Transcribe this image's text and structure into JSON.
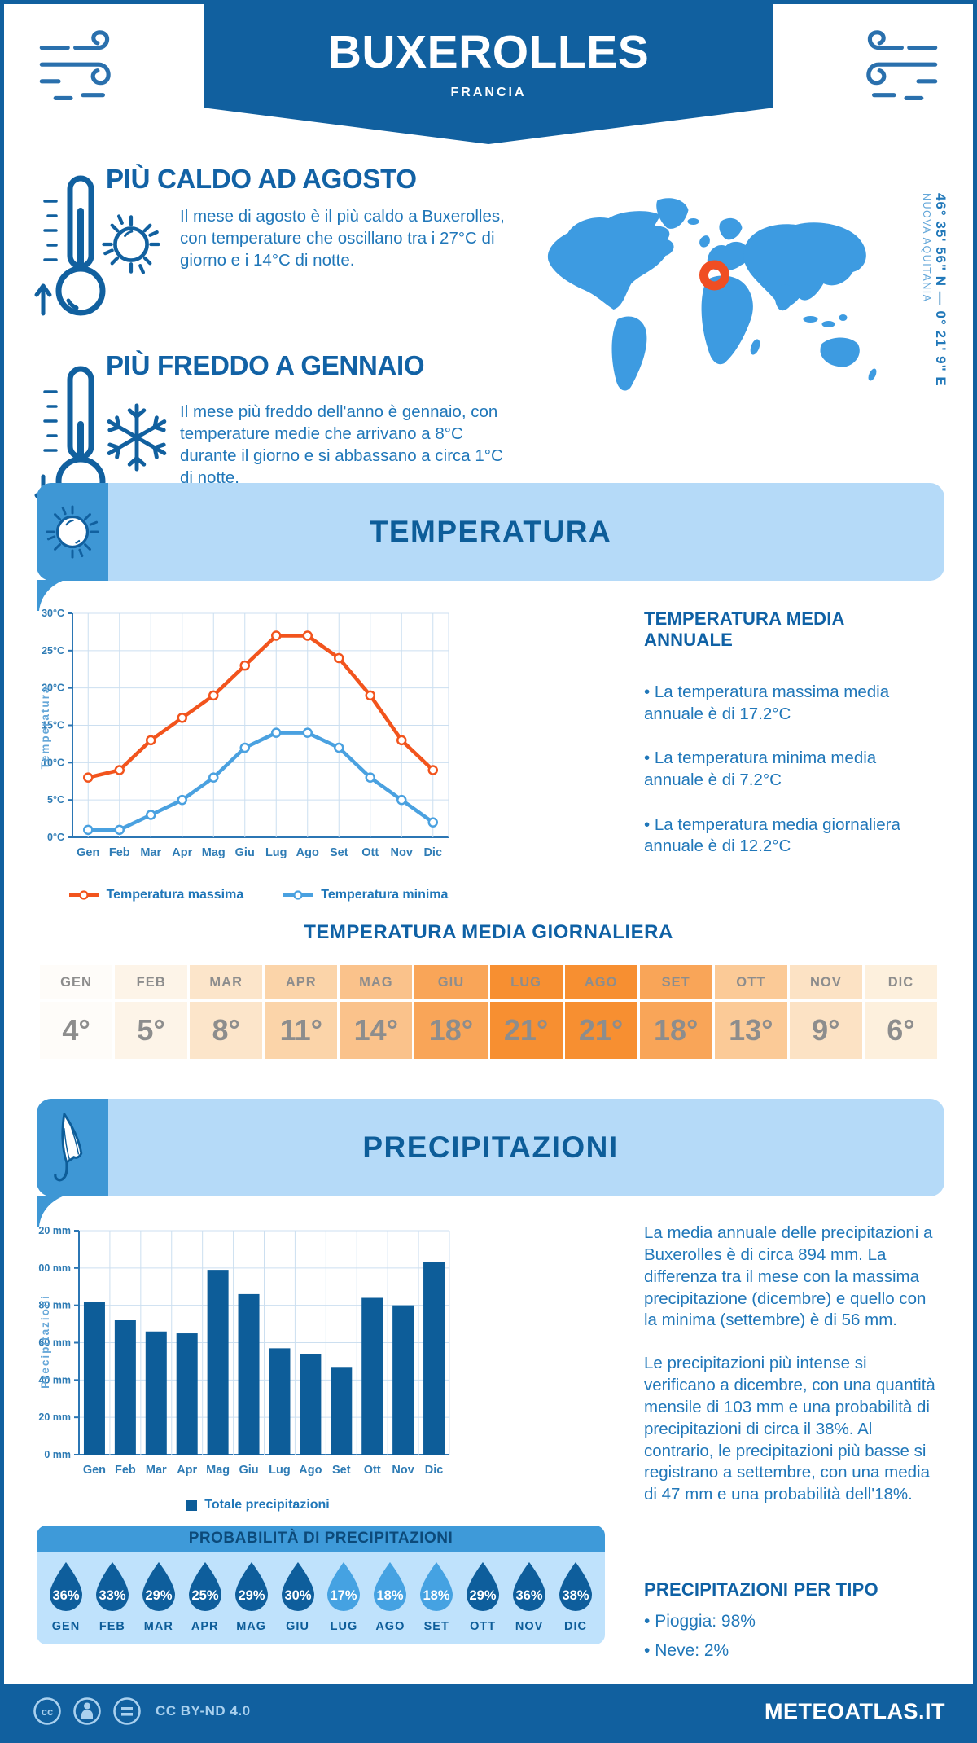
{
  "colors": {
    "primary_blue": "#11609f",
    "heading_blue": "#0f61a5",
    "body_text_blue": "#2077b9",
    "banner_light_blue": "#b5daf8",
    "banner_icon_blue": "#3e97d5",
    "panel_light_blue": "#bfe2fc",
    "panel_header_blue": "#3e9ad9",
    "map_blue": "#3d9be1",
    "marker_orange": "#f04e23",
    "line_max_orange": "#f2541d",
    "line_min_blue": "#4aa1e0",
    "bar_blue": "#0d5d99",
    "grid_blue": "#ccdff0",
    "axis_blue": "#2b76b4",
    "table_text_gray": "#8d8d8d",
    "footer_icon_blue": "#a9d0ee"
  },
  "header": {
    "title": "BUXEROLLES",
    "subtitle": "FRANCIA"
  },
  "highlights": {
    "hot": {
      "title": "PIÙ CALDO AD AGOSTO",
      "text": "Il mese di agosto è il più caldo a Buxerolles, con temperature che oscillano tra i 27°C di giorno e i 14°C di notte."
    },
    "cold": {
      "title": "PIÙ FREDDO A GENNAIO",
      "text": "Il mese più freddo dell'anno è gennaio, con temperature medie che arrivano a 8°C durante il giorno e si abbassano a circa 1°C di notte."
    }
  },
  "map": {
    "coordinates": "46° 35' 56\" N — 0° 21' 9\" E",
    "region": "NUOVA AQUITANIA"
  },
  "temperature": {
    "section_title": "TEMPERATURA",
    "summary_title": "TEMPERATURA MEDIA ANNUALE",
    "bullets": [
      "La temperatura massima media annuale è di 17.2°C",
      "La temperatura minima media annuale è di 7.2°C",
      "La temperatura media giornaliera annuale è di 12.2°C"
    ],
    "daily_title": "TEMPERATURA MEDIA GIORNALIERA"
  },
  "precipitation": {
    "section_title": "PRECIPITAZIONI",
    "paragraph1": "La media annuale delle precipitazioni a Buxerolles è di circa 894 mm. La differenza tra il mese con la massima precipitazione (dicembre) e quello con la minima (settembre) è di 56 mm.",
    "paragraph2": "Le precipitazioni più intense si verificano a dicembre, con una quantità mensile di 103 mm e una probabilità di precipitazioni di circa il 38%. Al contrario, le precipitazioni più basse si registrano a settembre, con una media di 47 mm e una probabilità dell'18%.",
    "probability_title": "PROBABILITÀ DI PRECIPITAZIONI",
    "type_title": "PRECIPITAZIONI PER TIPO",
    "types": [
      "Pioggia: 98%",
      "Neve: 2%"
    ]
  },
  "footer": {
    "license": "CC BY-ND 4.0",
    "site": "METEOATLAS.IT"
  },
  "chart_data": [
    {
      "id": "temp_line",
      "type": "line",
      "title": "TEMPERATURA",
      "xlabel": "",
      "ylabel": "Temperatura",
      "x": [
        "Gen",
        "Feb",
        "Mar",
        "Apr",
        "Mag",
        "Giu",
        "Lug",
        "Ago",
        "Set",
        "Ott",
        "Nov",
        "Dic"
      ],
      "ylim": [
        0,
        30
      ],
      "ytick_step": 5,
      "ytick_suffix": "°C",
      "grid": true,
      "legend_position": "bottom",
      "series": [
        {
          "name": "Temperatura massima",
          "color": "#f2541d",
          "values": [
            8,
            9,
            13,
            16,
            19,
            23,
            27,
            27,
            24,
            19,
            13,
            9
          ]
        },
        {
          "name": "Temperatura minima",
          "color": "#4aa1e0",
          "values": [
            1,
            1,
            3,
            5,
            8,
            12,
            14,
            14,
            12,
            8,
            5,
            2
          ]
        }
      ]
    },
    {
      "id": "precip_bar",
      "type": "bar",
      "title": "PRECIPITAZIONI",
      "xlabel": "",
      "ylabel": "Precipitazioni",
      "categories": [
        "Gen",
        "Feb",
        "Mar",
        "Apr",
        "Mag",
        "Giu",
        "Lug",
        "Ago",
        "Set",
        "Ott",
        "Nov",
        "Dic"
      ],
      "values": [
        82,
        72,
        66,
        65,
        99,
        86,
        57,
        54,
        47,
        84,
        80,
        103
      ],
      "ylim": [
        0,
        120
      ],
      "ytick_step": 20,
      "ytick_suffix": " mm",
      "grid": true,
      "bar_color": "#0d5d99",
      "legend": "Totale precipitazioni",
      "legend_position": "bottom"
    },
    {
      "id": "daily_table",
      "type": "table",
      "title": "TEMPERATURA MEDIA GIORNALIERA",
      "columns": [
        "GEN",
        "FEB",
        "MAR",
        "APR",
        "MAG",
        "GIU",
        "LUG",
        "AGO",
        "SET",
        "OTT",
        "NOV",
        "DIC"
      ],
      "values": [
        "4°",
        "5°",
        "8°",
        "11°",
        "14°",
        "18°",
        "21°",
        "21°",
        "18°",
        "13°",
        "9°",
        "6°"
      ],
      "cell_colors": [
        "#fefcf9",
        "#fdf4e8",
        "#fce5ca",
        "#fbd4a9",
        "#fac28b",
        "#f9a558",
        "#f78f31",
        "#f78f31",
        "#f9a558",
        "#fbca97",
        "#fce2c4",
        "#fdf0dd"
      ]
    },
    {
      "id": "prob_drops",
      "type": "pictogram",
      "title": "PROBABILITÀ DI PRECIPITAZIONI",
      "months": [
        "GEN",
        "FEB",
        "MAR",
        "APR",
        "MAG",
        "GIU",
        "LUG",
        "AGO",
        "SET",
        "OTT",
        "NOV",
        "DIC"
      ],
      "values": [
        "36%",
        "33%",
        "29%",
        "25%",
        "29%",
        "30%",
        "17%",
        "18%",
        "18%",
        "29%",
        "36%",
        "38%"
      ],
      "drop_colors": [
        "#0e5e9c",
        "#0e5e9c",
        "#0e5e9c",
        "#0e5e9c",
        "#0e5e9c",
        "#0e5e9c",
        "#45a2e2",
        "#45a2e2",
        "#45a2e2",
        "#0e5e9c",
        "#0e5e9c",
        "#0e5e9c"
      ]
    }
  ]
}
